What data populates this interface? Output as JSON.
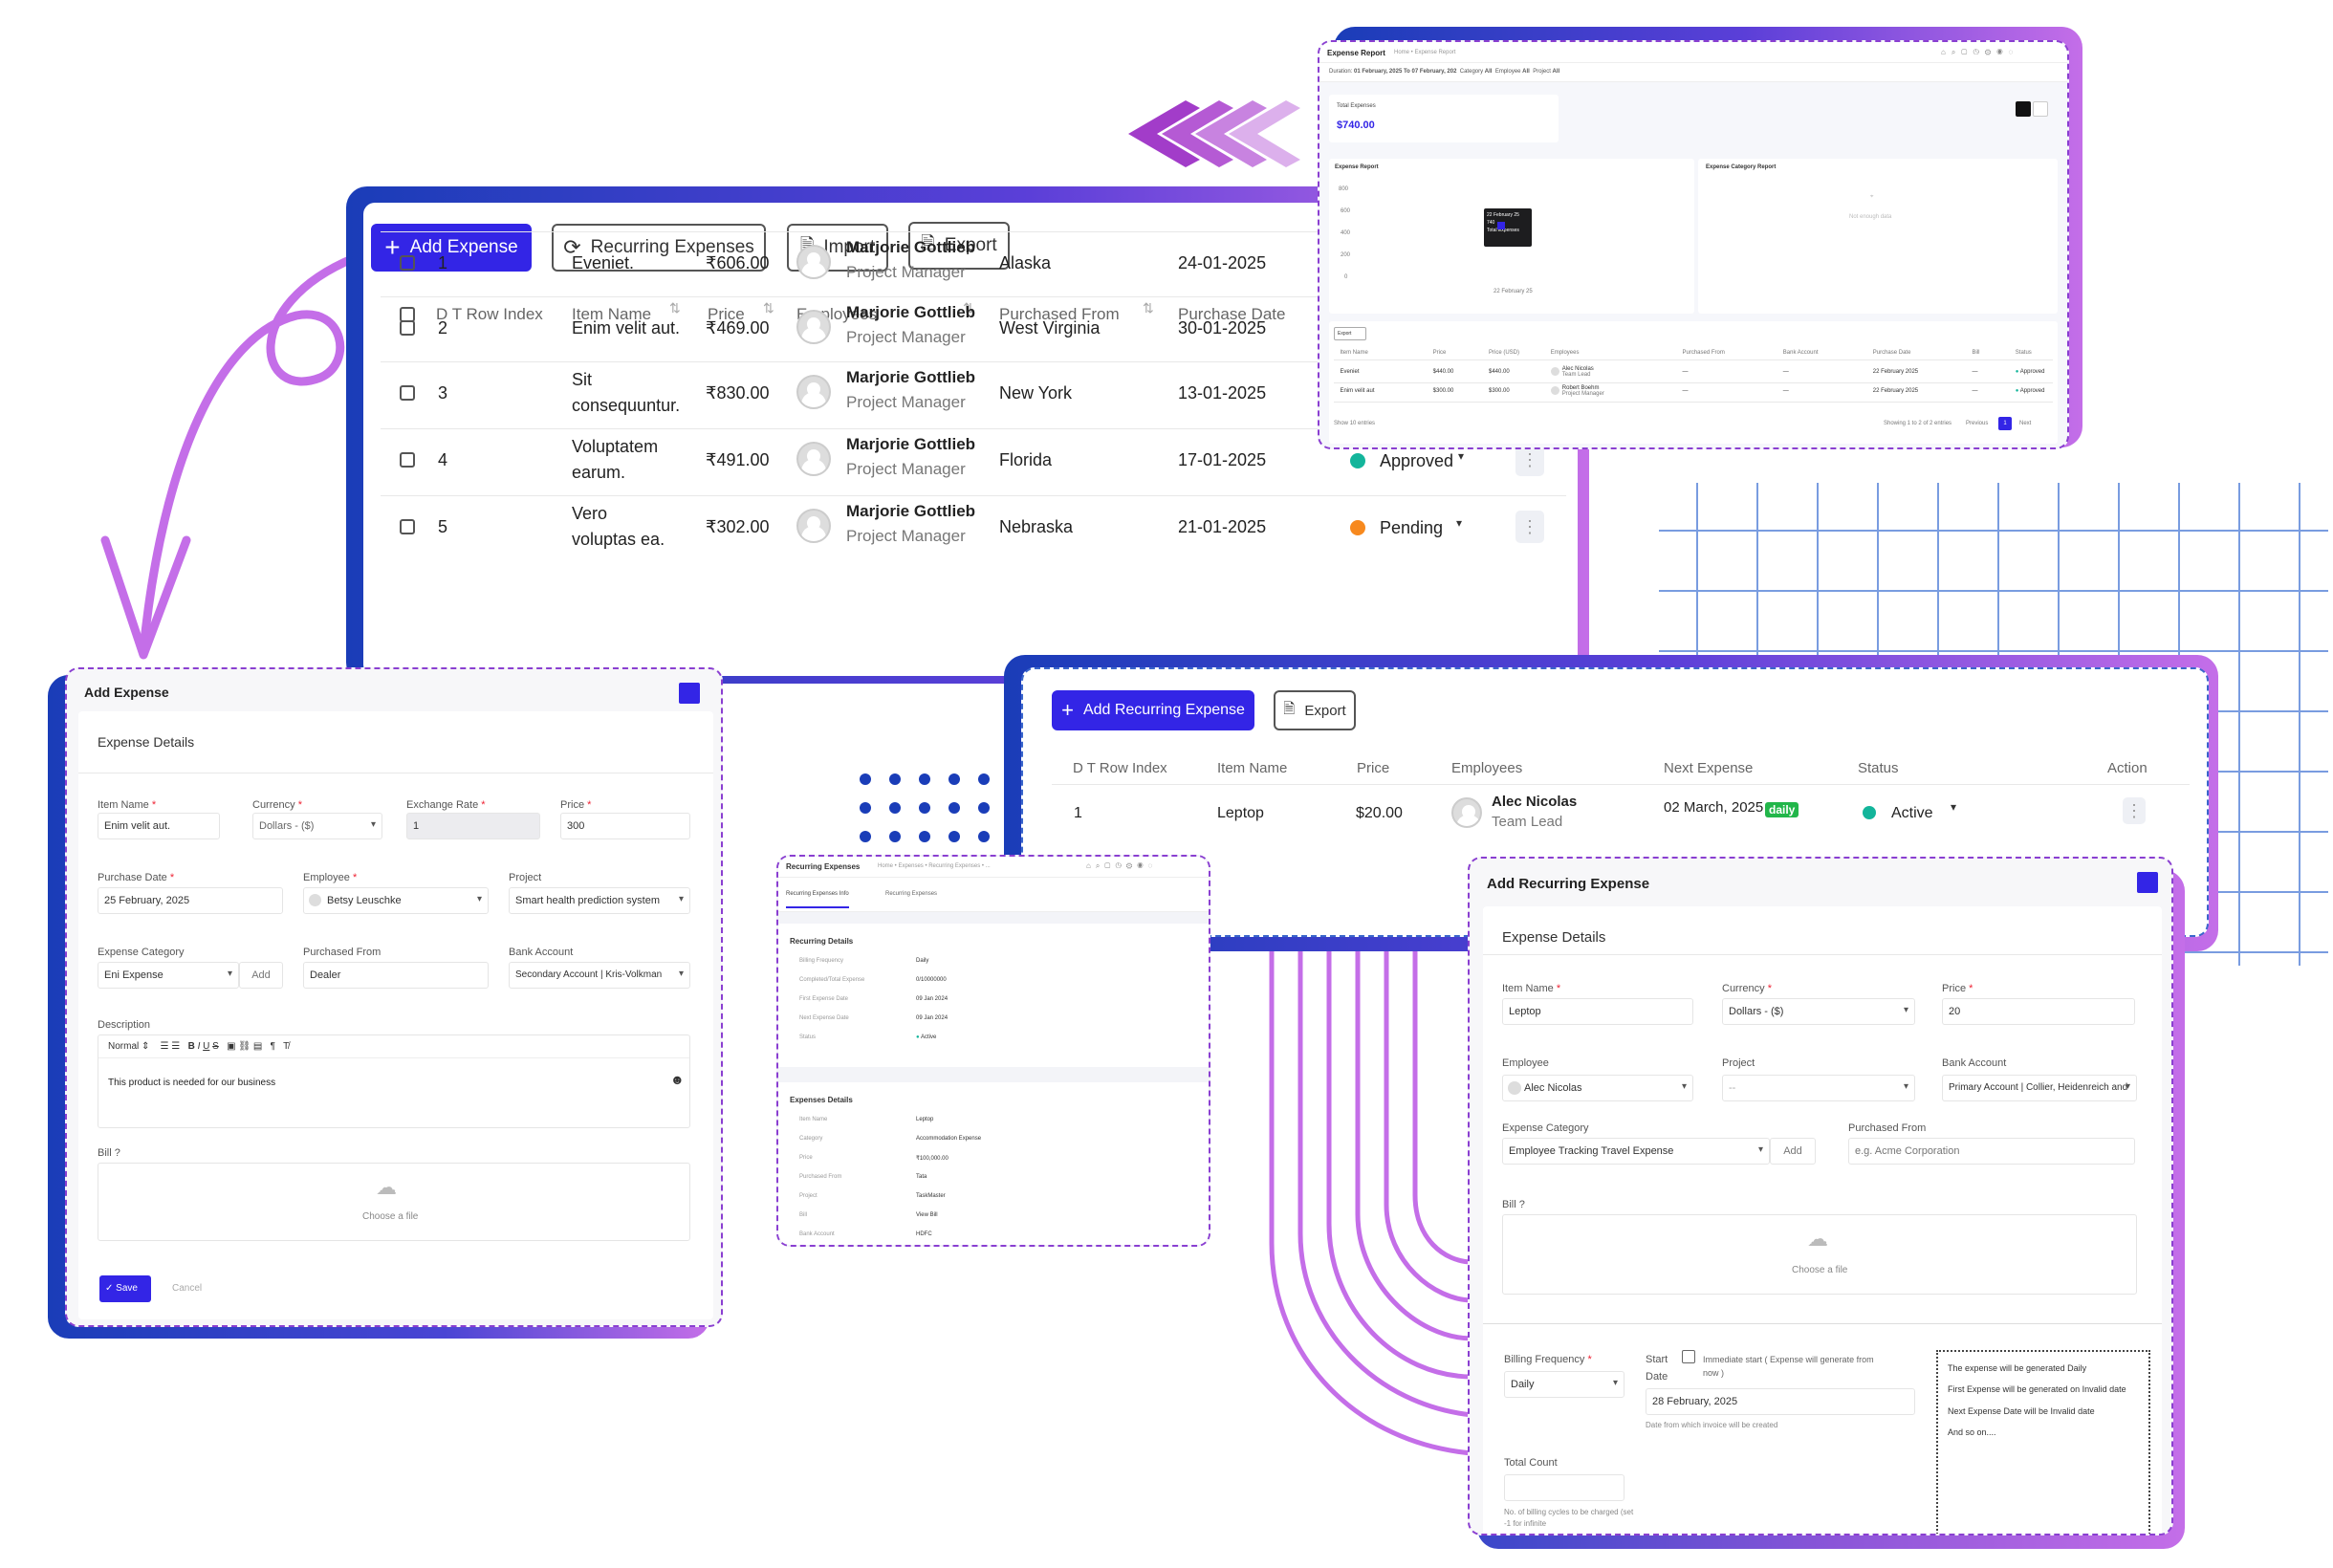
{
  "expense_list": {
    "buttons": {
      "add": "Add Expense",
      "recurring": "Recurring Expenses",
      "import": "Import",
      "export": "Export"
    },
    "columns": [
      "D T Row Index",
      "Item Name",
      "Price",
      "Employees",
      "Purchased From",
      "Purchase Date"
    ],
    "rows": [
      {
        "index": "1",
        "item_line1": "Eveniet.",
        "item_line2": "",
        "price": "₹606.00",
        "employee": "Marjorie Gottlieb",
        "role": "Project Manager",
        "from": "Alaska",
        "date": "24-01-2025",
        "status": "",
        "status_color": ""
      },
      {
        "index": "2",
        "item_line1": "Enim velit aut.",
        "item_line2": "",
        "price": "₹469.00",
        "employee": "Marjorie Gottlieb",
        "role": "Project Manager",
        "from": "West Virginia",
        "date": "30-01-2025",
        "status": "",
        "status_color": ""
      },
      {
        "index": "3",
        "item_line1": "Sit",
        "item_line2": "consequuntur.",
        "price": "₹830.00",
        "employee": "Marjorie Gottlieb",
        "role": "Project Manager",
        "from": "New York",
        "date": "13-01-2025",
        "status": "Approved",
        "status_color": "#13b59b"
      },
      {
        "index": "4",
        "item_line1": "Voluptatem",
        "item_line2": "earum.",
        "price": "₹491.00",
        "employee": "Marjorie Gottlieb",
        "role": "Project Manager",
        "from": "Florida",
        "date": "17-01-2025",
        "status": "Approved",
        "status_color": "#13b59b"
      },
      {
        "index": "5",
        "item_line1": "Vero",
        "item_line2": "voluptas ea.",
        "price": "₹302.00",
        "employee": "Marjorie Gottlieb",
        "role": "Project Manager",
        "from": "Nebraska",
        "date": "21-01-2025",
        "status": "Pending",
        "status_color": "#f7891e"
      }
    ]
  },
  "report": {
    "title": "Expense Report",
    "breadcrumb": "Home • Expense Report",
    "filters": {
      "duration_label": "Duration:",
      "duration": "01 February, 2025 To 07 February, 202",
      "category_label": "Category",
      "employee_label": "Employee",
      "project_label": "Project",
      "all": "All"
    },
    "total_label": "Total Expenses",
    "total_value": "$740.00",
    "chart1_title": "Expense Report",
    "chart2_title": "Expense Category Report",
    "no_data": "Not enough data",
    "y_ticks": [
      "800",
      "600",
      "400",
      "200",
      "0"
    ],
    "tooltip": {
      "date": "22 February 25",
      "value": "740",
      "label": "Total Expenses"
    },
    "x_tick": "22 February 25",
    "export": "Export",
    "columns": [
      "Item Name",
      "Price",
      "Price (USD)",
      "Employees",
      "Purchased From",
      "Bank Account",
      "Purchase Date",
      "Bill",
      "Status"
    ],
    "rows": [
      {
        "item": "Eveniet",
        "price": "$440.00",
        "usd": "$440.00",
        "emp": "Alec Nicolas",
        "role": "Team Lead",
        "from": "—",
        "bank": "—",
        "date": "22 February 2025",
        "bill": "—",
        "status": "Approved"
      },
      {
        "item": "Enim velit aut",
        "price": "$300.00",
        "usd": "$300.00",
        "emp": "Robert Boehm",
        "role": "Project Manager",
        "from": "—",
        "bank": "—",
        "date": "22 February 2025",
        "bill": "—",
        "status": "Approved"
      }
    ],
    "show": "Show",
    "show_value": "10",
    "entries": "entries",
    "showing": "Showing 1 to 2 of 2 entries",
    "prev": "Previous",
    "page": "1",
    "next": "Next"
  },
  "add_expense": {
    "title": "Add Expense",
    "section": "Expense Details",
    "item_name_label": "Item Name",
    "item_name": "Enim velit aut.",
    "currency_label": "Currency",
    "currency": "Dollars - ($)",
    "rate_label": "Exchange Rate",
    "rate": "1",
    "price_label": "Price",
    "price": "300",
    "purchase_date_label": "Purchase Date",
    "purchase_date": "25 February, 2025",
    "employee_label": "Employee",
    "employee": "Betsy Leuschke",
    "project_label": "Project",
    "project": "Smart health prediction system",
    "category_label": "Expense Category",
    "category": "Eni Expense",
    "add": "Add",
    "from_label": "Purchased From",
    "from": "Dealer",
    "bank_label": "Bank Account",
    "bank": "Secondary Account | Kris-Volkman",
    "desc_label": "Description",
    "toolbar_normal": "Normal",
    "desc": "This product is needed for our business",
    "bill_label": "Bill",
    "choose": "Choose a file",
    "save": "Save",
    "cancel": "Cancel"
  },
  "recurring_list": {
    "add": "Add Recurring Expense",
    "export": "Export",
    "columns": [
      "D T Row Index",
      "Item Name",
      "Price",
      "Employees",
      "Next Expense",
      "Status",
      "Action"
    ],
    "row": {
      "index": "1",
      "item": "Leptop",
      "price": "$20.00",
      "employee": "Alec Nicolas",
      "role": "Team Lead",
      "next": "02 March, 2025",
      "badge": "daily",
      "status": "Active"
    }
  },
  "recurring_detail": {
    "title": "Recurring Expenses",
    "breadcrumb": "Home • Expenses • Recurring Expenses • ...",
    "tabs": [
      "Recurring Expenses Info",
      "Recurring Expenses"
    ],
    "section1": "Recurring Details",
    "details": [
      {
        "k": "Billing Frequency",
        "v": "Daily"
      },
      {
        "k": "Completed/Total Expense",
        "v": "0/10000000"
      },
      {
        "k": "First Expense Date",
        "v": "09 Jan 2024"
      },
      {
        "k": "Next Expense Date",
        "v": "09 Jan 2024"
      },
      {
        "k": "Status",
        "v": "Active"
      }
    ],
    "section2": "Expenses Details",
    "expense": [
      {
        "k": "Item Name",
        "v": "Leptop"
      },
      {
        "k": "Category",
        "v": "Accommodation Expense"
      },
      {
        "k": "Price",
        "v": "₹100,000.00"
      },
      {
        "k": "Purchased From",
        "v": "Tata"
      },
      {
        "k": "Project",
        "v": "TaskMaster"
      },
      {
        "k": "Bill",
        "v": "View Bill"
      },
      {
        "k": "Bank Account",
        "v": "HDFC"
      }
    ]
  },
  "add_recurring": {
    "title": "Add Recurring Expense",
    "section": "Expense Details",
    "item_name_label": "Item Name",
    "item_name": "Leptop",
    "currency_label": "Currency",
    "currency": "Dollars - ($)",
    "price_label": "Price",
    "price": "20",
    "employee_label": "Employee",
    "employee": "Alec Nicolas",
    "project_label": "Project",
    "project": "--",
    "bank_label": "Bank Account",
    "bank": "Primary Account | Collier, Heidenreich and",
    "category_label": "Expense Category",
    "category": "Employee Tracking Travel Expense",
    "add": "Add",
    "from_label": "Purchased From",
    "from_placeholder": "e.g. Acme Corporation",
    "bill_label": "Bill",
    "choose": "Choose a file",
    "billing_label": "Billing Frequency",
    "billing": "Daily",
    "start_label_1": "Start",
    "start_label_2": "Date",
    "immediate": "Immediate start ( Expense will generate from now )",
    "start_date": "28 February, 2025",
    "start_hint": "Date from which invoice will be created",
    "total_label": "Total Count",
    "total_hint": "No. of billing cycles to be charged (set -1 for infinite",
    "info": [
      "The expense will be generated Daily",
      "First Expense will be generated on Invalid date",
      "Next Expense Date will be Invalid date",
      "And so on...."
    ]
  },
  "colors": {
    "primary": "#3325e6",
    "purple": "#c46ee8",
    "navy": "#1a3db8",
    "approved": "#13b59b",
    "pending": "#f7891e",
    "grid": "#4d7cd6"
  }
}
